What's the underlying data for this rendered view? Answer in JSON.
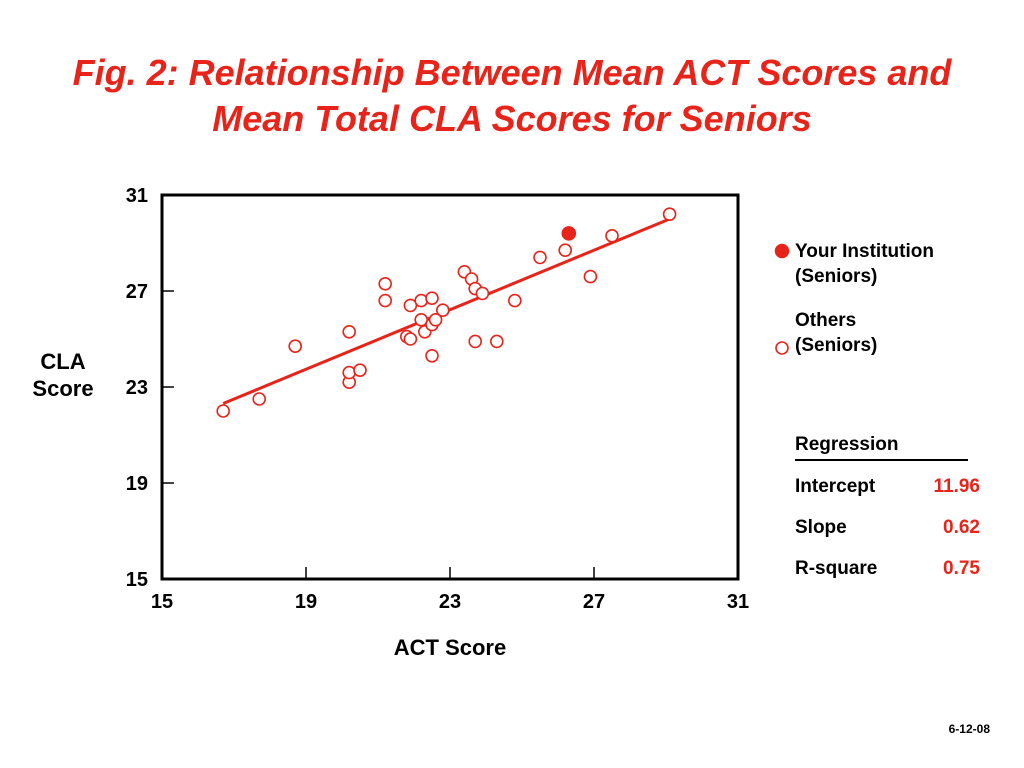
{
  "title": {
    "line1": "Fig. 2: Relationship Between Mean ACT Scores and",
    "line2": "Mean Total CLA Scores for Seniors"
  },
  "colors": {
    "accent": "#e8241a",
    "axis": "#000000",
    "background": "#ffffff"
  },
  "chart_data": {
    "type": "scatter",
    "xlabel": "ACT Score",
    "ylabel_line1": "CLA",
    "ylabel_line2": "Score",
    "xlim": [
      15,
      31
    ],
    "ylim": [
      15,
      31
    ],
    "x_ticks": [
      15,
      19,
      23,
      27,
      31
    ],
    "y_ticks": [
      15,
      19,
      23,
      27,
      31
    ],
    "grid": false,
    "legend_position": "right",
    "series": [
      {
        "name": "Your Institution (Seniors)",
        "marker": "filled-circle",
        "points": [
          [
            26.3,
            29.4
          ]
        ]
      },
      {
        "name": "Others (Seniors)",
        "marker": "open-circle",
        "points": [
          [
            16.7,
            22.0
          ],
          [
            17.7,
            22.5
          ],
          [
            18.7,
            24.7
          ],
          [
            20.2,
            25.3
          ],
          [
            20.2,
            23.2
          ],
          [
            20.2,
            23.6
          ],
          [
            20.5,
            23.7
          ],
          [
            21.2,
            27.3
          ],
          [
            21.2,
            26.6
          ],
          [
            21.8,
            25.1
          ],
          [
            21.9,
            25.0
          ],
          [
            21.9,
            26.4
          ],
          [
            22.2,
            26.6
          ],
          [
            22.2,
            25.8
          ],
          [
            22.3,
            25.3
          ],
          [
            22.5,
            26.7
          ],
          [
            22.5,
            25.6
          ],
          [
            22.6,
            25.8
          ],
          [
            22.8,
            26.2
          ],
          [
            22.5,
            24.3
          ],
          [
            23.4,
            27.8
          ],
          [
            23.6,
            27.5
          ],
          [
            23.7,
            27.1
          ],
          [
            23.9,
            26.9
          ],
          [
            23.7,
            24.9
          ],
          [
            24.3,
            24.9
          ],
          [
            24.8,
            26.6
          ],
          [
            25.5,
            28.4
          ],
          [
            26.2,
            28.7
          ],
          [
            26.9,
            27.6
          ],
          [
            27.5,
            29.3
          ],
          [
            29.1,
            30.2
          ]
        ]
      }
    ],
    "regression": {
      "x_start": 16.7,
      "x_end": 29.1
    }
  },
  "legend": {
    "your_line1": "Your Institution",
    "your_line2": "(Seniors)",
    "others_line1": "Others",
    "others_line2": "(Seniors)"
  },
  "regression_table": {
    "header": "Regression",
    "rows": [
      {
        "label": "Intercept",
        "value": "11.96"
      },
      {
        "label": "Slope",
        "value": "0.62"
      },
      {
        "label": "R-square",
        "value": "0.75"
      }
    ]
  },
  "footer": "6-12-08"
}
